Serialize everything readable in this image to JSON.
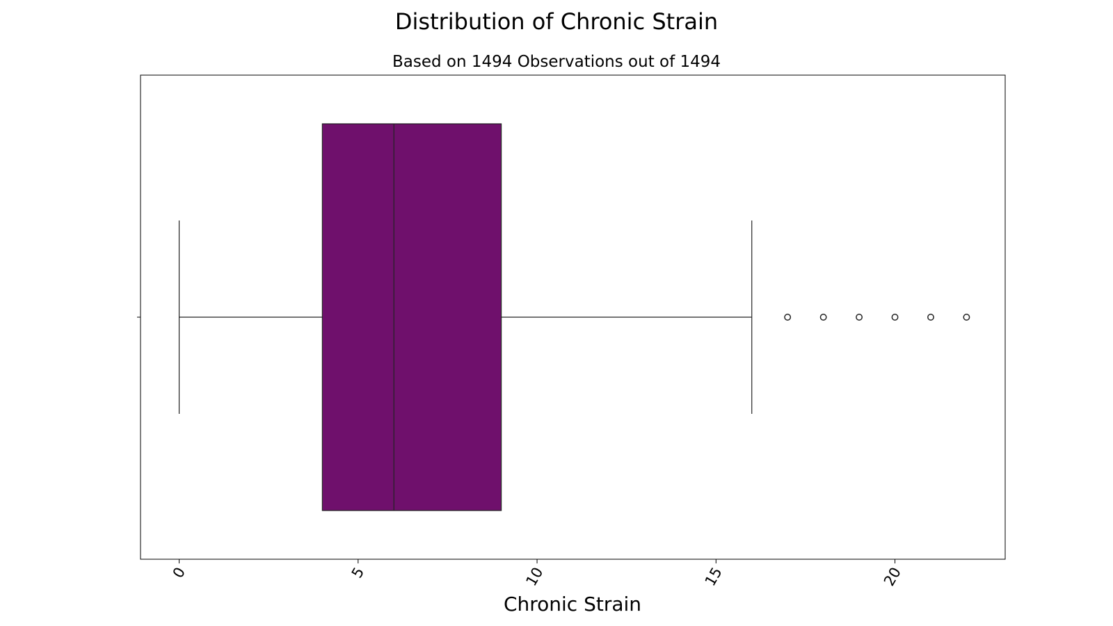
{
  "chart_data": {
    "type": "box",
    "title": "Distribution of Chronic Strain",
    "subtitle": "Based on 1494 Observations out of 1494",
    "xlabel": "Chronic Strain",
    "ylabel": "",
    "orientation": "horizontal",
    "xlim": [
      -1.08,
      23.08
    ],
    "xticks": [
      0,
      5,
      10,
      15,
      20
    ],
    "xtick_labels": [
      "0",
      "5",
      "10",
      "15",
      "20"
    ],
    "box": {
      "whisker_low": 0,
      "q1": 4,
      "median": 6,
      "q3": 9,
      "whisker_high": 16
    },
    "outliers": [
      17,
      18,
      19,
      20,
      21,
      22
    ],
    "box_color": "#6f106c",
    "grid": false,
    "legend": "none"
  }
}
